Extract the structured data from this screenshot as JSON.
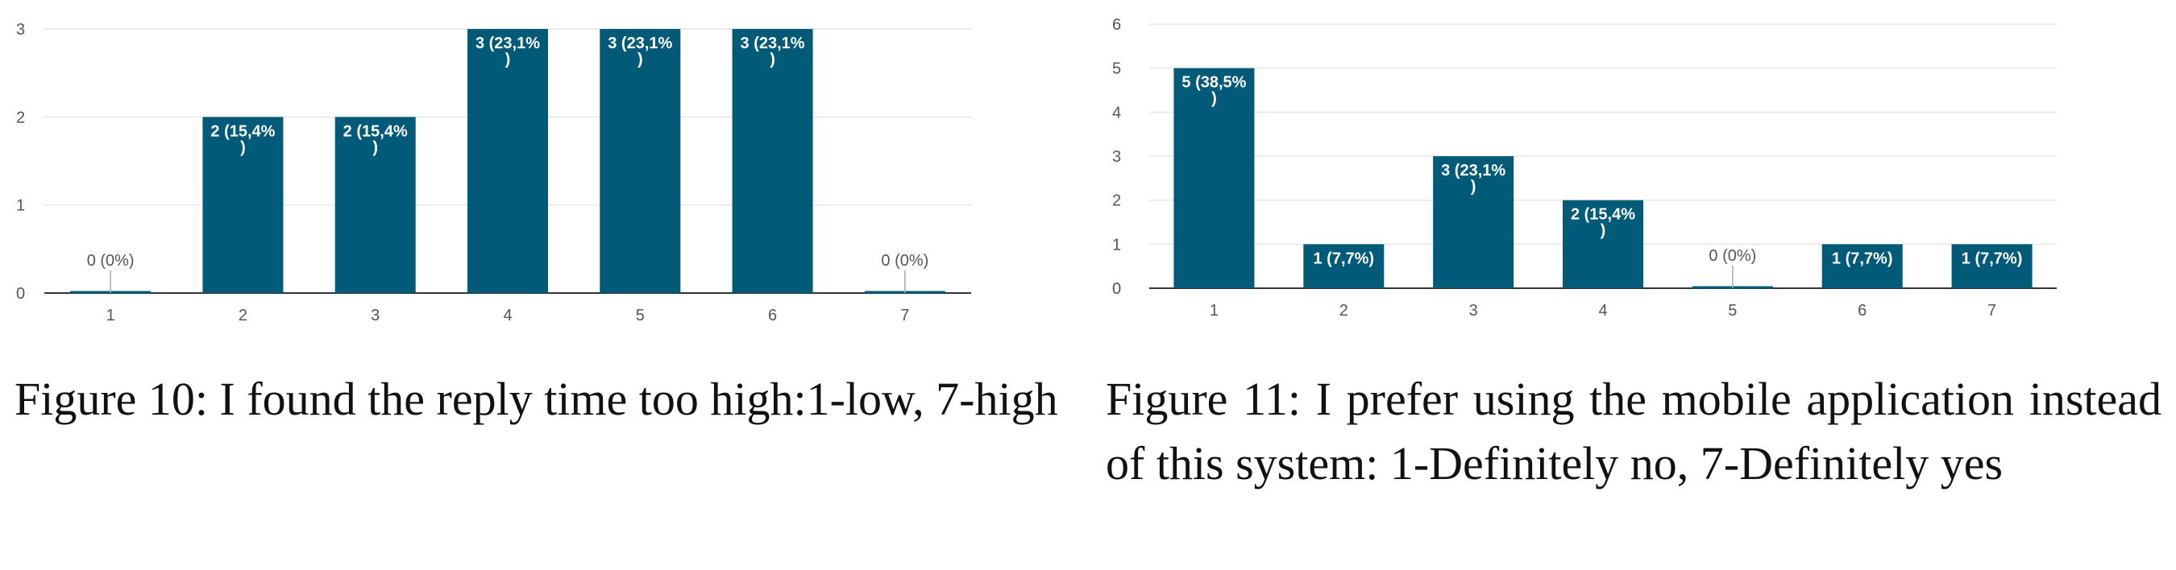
{
  "chart_data": [
    {
      "type": "bar",
      "title": "",
      "xlabel": "",
      "ylabel": "",
      "categories": [
        "1",
        "2",
        "3",
        "4",
        "5",
        "6",
        "7"
      ],
      "values": [
        0,
        2,
        2,
        3,
        3,
        3,
        0
      ],
      "data_labels": [
        "0 (0%)",
        "2 (15,4%\n)",
        "2 (15,4%\n)",
        "3 (23,1%\n)",
        "3 (23,1%\n)",
        "3 (23,1%\n)",
        "0 (0%)"
      ],
      "y_ticks": [
        "0",
        "1",
        "2",
        "3"
      ],
      "ylim": [
        0,
        3
      ],
      "grid": true,
      "bar_color": "#005a78"
    },
    {
      "type": "bar",
      "title": "",
      "xlabel": "",
      "ylabel": "",
      "categories": [
        "1",
        "2",
        "3",
        "4",
        "5",
        "6",
        "7"
      ],
      "values": [
        5,
        1,
        3,
        2,
        0,
        1,
        1
      ],
      "data_labels": [
        "5 (38,5%\n)",
        "1 (7,7%)",
        "3 (23,1%\n)",
        "2 (15,4%\n)",
        "0 (0%)",
        "1 (7,7%)",
        "1 (7,7%)"
      ],
      "y_ticks": [
        "0",
        "1",
        "2",
        "3",
        "4",
        "5",
        "6"
      ],
      "ylim": [
        0,
        6
      ],
      "grid": true,
      "bar_color": "#005a78"
    }
  ],
  "captions": {
    "fig10": "Figure 10: I found the reply time too high:1-low, 7-high",
    "fig11": "Figure 11: I prefer using the mobile application instead of this system: 1-Definitely no, 7-Definitely yes"
  }
}
